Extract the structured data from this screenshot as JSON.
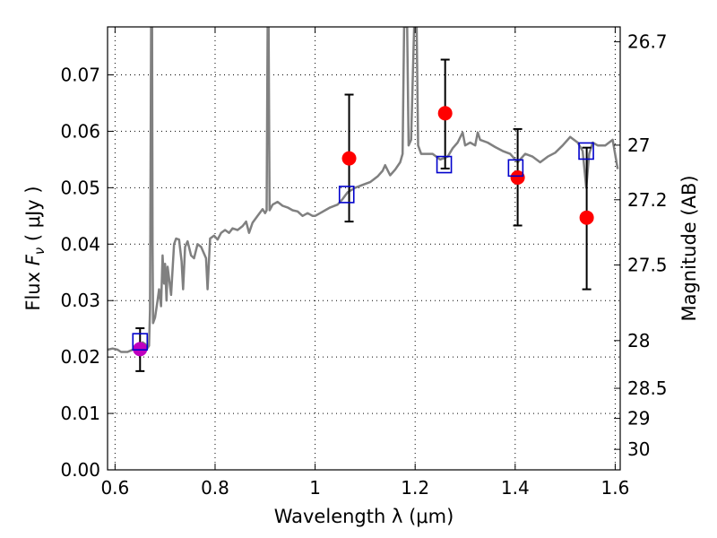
{
  "chart_data": {
    "type": "scatter",
    "xlabel": "Wavelength  λ (μm)",
    "ylabel_prefix": "Flux  ",
    "ylabel_symbol": "F",
    "ylabel_subscript": "ν",
    "ylabel_units": "  ( μJy )",
    "ylabel_right": "Magnitude (AB)",
    "xlim": [
      0.585,
      1.61
    ],
    "ylim": [
      0.0,
      0.0785
    ],
    "grid": true,
    "x_ticks": [
      0.6,
      0.8,
      1.0,
      1.2,
      1.4,
      1.6
    ],
    "x_tick_labels": [
      "0.6",
      "0.8",
      "1",
      "1.2",
      "1.4",
      "1.6"
    ],
    "y_ticks": [
      0.0,
      0.01,
      0.02,
      0.03,
      0.04,
      0.05,
      0.06,
      0.07
    ],
    "y_tick_labels": [
      "0.00",
      "0.01",
      "0.02",
      "0.03",
      "0.04",
      "0.05",
      "0.06",
      "0.07"
    ],
    "mag_ticks": [
      26.7,
      27,
      27.2,
      27.5,
      28,
      28.5,
      29,
      30
    ],
    "mag_tick_labels": [
      "26.7",
      "27",
      "27.2",
      "27.5",
      "28",
      "28.5",
      "29",
      "30"
    ],
    "colors": {
      "spectrum": "#808080",
      "observed": "#ff0000",
      "observed_optical": "#bf00bf",
      "model": "#0000cc",
      "errorbar": "#000000"
    },
    "spectrum": [
      [
        0.585,
        0.0213
      ],
      [
        0.595,
        0.0215
      ],
      [
        0.605,
        0.0213
      ],
      [
        0.612,
        0.0209
      ],
      [
        0.625,
        0.0209
      ],
      [
        0.638,
        0.0214
      ],
      [
        0.648,
        0.0218
      ],
      [
        0.655,
        0.0226
      ],
      [
        0.66,
        0.0223
      ],
      [
        0.665,
        0.0216
      ],
      [
        0.668,
        0.022
      ],
      [
        0.67,
        0.0285
      ],
      [
        0.672,
        0.0785
      ],
      [
        0.674,
        0.0785
      ],
      [
        0.675,
        0.04
      ],
      [
        0.676,
        0.026
      ],
      [
        0.68,
        0.027
      ],
      [
        0.685,
        0.03
      ],
      [
        0.688,
        0.032
      ],
      [
        0.692,
        0.029
      ],
      [
        0.695,
        0.038
      ],
      [
        0.698,
        0.033
      ],
      [
        0.7,
        0.0365
      ],
      [
        0.703,
        0.03
      ],
      [
        0.705,
        0.036
      ],
      [
        0.708,
        0.034
      ],
      [
        0.712,
        0.031
      ],
      [
        0.718,
        0.04
      ],
      [
        0.722,
        0.041
      ],
      [
        0.728,
        0.0408
      ],
      [
        0.733,
        0.037
      ],
      [
        0.736,
        0.032
      ],
      [
        0.74,
        0.0395
      ],
      [
        0.745,
        0.0405
      ],
      [
        0.752,
        0.038
      ],
      [
        0.758,
        0.0375
      ],
      [
        0.765,
        0.04
      ],
      [
        0.772,
        0.0395
      ],
      [
        0.782,
        0.0375
      ],
      [
        0.785,
        0.032
      ],
      [
        0.79,
        0.041
      ],
      [
        0.798,
        0.0415
      ],
      [
        0.805,
        0.0408
      ],
      [
        0.812,
        0.042
      ],
      [
        0.82,
        0.0425
      ],
      [
        0.828,
        0.042
      ],
      [
        0.835,
        0.0428
      ],
      [
        0.845,
        0.0425
      ],
      [
        0.855,
        0.0432
      ],
      [
        0.862,
        0.044
      ],
      [
        0.868,
        0.042
      ],
      [
        0.875,
        0.0438
      ],
      [
        0.885,
        0.045
      ],
      [
        0.895,
        0.0462
      ],
      [
        0.9,
        0.0455
      ],
      [
        0.903,
        0.046
      ],
      [
        0.905,
        0.0785
      ],
      [
        0.907,
        0.0785
      ],
      [
        0.909,
        0.046
      ],
      [
        0.915,
        0.047
      ],
      [
        0.925,
        0.0475
      ],
      [
        0.935,
        0.0468
      ],
      [
        0.945,
        0.0465
      ],
      [
        0.955,
        0.046
      ],
      [
        0.965,
        0.0458
      ],
      [
        0.975,
        0.045
      ],
      [
        0.985,
        0.0455
      ],
      [
        0.995,
        0.045
      ],
      [
        1.0,
        0.045
      ],
      [
        1.01,
        0.0455
      ],
      [
        1.02,
        0.046
      ],
      [
        1.03,
        0.0465
      ],
      [
        1.045,
        0.047
      ],
      [
        1.055,
        0.048
      ],
      [
        1.065,
        0.0492
      ],
      [
        1.08,
        0.05
      ],
      [
        1.095,
        0.0505
      ],
      [
        1.11,
        0.051
      ],
      [
        1.125,
        0.052
      ],
      [
        1.135,
        0.053
      ],
      [
        1.14,
        0.054
      ],
      [
        1.15,
        0.0522
      ],
      [
        1.16,
        0.0532
      ],
      [
        1.17,
        0.0545
      ],
      [
        1.175,
        0.056
      ],
      [
        1.178,
        0.0785
      ],
      [
        1.184,
        0.0785
      ],
      [
        1.187,
        0.0575
      ],
      [
        1.192,
        0.0585
      ],
      [
        1.198,
        0.0785
      ],
      [
        1.203,
        0.0785
      ],
      [
        1.206,
        0.0575
      ],
      [
        1.212,
        0.056
      ],
      [
        1.22,
        0.056
      ],
      [
        1.235,
        0.056
      ],
      [
        1.25,
        0.055
      ],
      [
        1.265,
        0.0555
      ],
      [
        1.275,
        0.057
      ],
      [
        1.285,
        0.058
      ],
      [
        1.295,
        0.0598
      ],
      [
        1.3,
        0.0575
      ],
      [
        1.31,
        0.058
      ],
      [
        1.32,
        0.0575
      ],
      [
        1.325,
        0.0598
      ],
      [
        1.33,
        0.0585
      ],
      [
        1.345,
        0.058
      ],
      [
        1.36,
        0.0572
      ],
      [
        1.375,
        0.0565
      ],
      [
        1.39,
        0.056
      ],
      [
        1.405,
        0.0545
      ],
      [
        1.42,
        0.056
      ],
      [
        1.435,
        0.0555
      ],
      [
        1.45,
        0.0545
      ],
      [
        1.465,
        0.0555
      ],
      [
        1.48,
        0.0562
      ],
      [
        1.495,
        0.0575
      ],
      [
        1.51,
        0.059
      ],
      [
        1.525,
        0.058
      ],
      [
        1.535,
        0.0565
      ],
      [
        1.542,
        0.05
      ],
      [
        1.548,
        0.056
      ],
      [
        1.555,
        0.058
      ],
      [
        1.565,
        0.0575
      ],
      [
        1.58,
        0.0575
      ],
      [
        1.595,
        0.0585
      ],
      [
        1.605,
        0.0533
      ]
    ],
    "observed_points": [
      {
        "x": 0.65,
        "y": 0.0214,
        "err_low": 0.0175,
        "err_high": 0.0251,
        "color_key": "observed_optical"
      },
      {
        "x": 1.068,
        "y": 0.0552,
        "err_low": 0.044,
        "err_high": 0.0665,
        "color_key": "observed"
      },
      {
        "x": 1.26,
        "y": 0.0632,
        "err_low": 0.0534,
        "err_high": 0.0727,
        "color_key": "observed"
      },
      {
        "x": 1.405,
        "y": 0.0518,
        "err_low": 0.0433,
        "err_high": 0.0604,
        "color_key": "observed"
      },
      {
        "x": 1.543,
        "y": 0.0447,
        "err_low": 0.032,
        "err_high": 0.0571,
        "color_key": "observed"
      }
    ],
    "model_points": [
      {
        "x": 0.65,
        "y": 0.0227
      },
      {
        "x": 1.063,
        "y": 0.0488
      },
      {
        "x": 1.258,
        "y": 0.0541
      },
      {
        "x": 1.401,
        "y": 0.0535
      },
      {
        "x": 1.542,
        "y": 0.0565
      }
    ]
  }
}
